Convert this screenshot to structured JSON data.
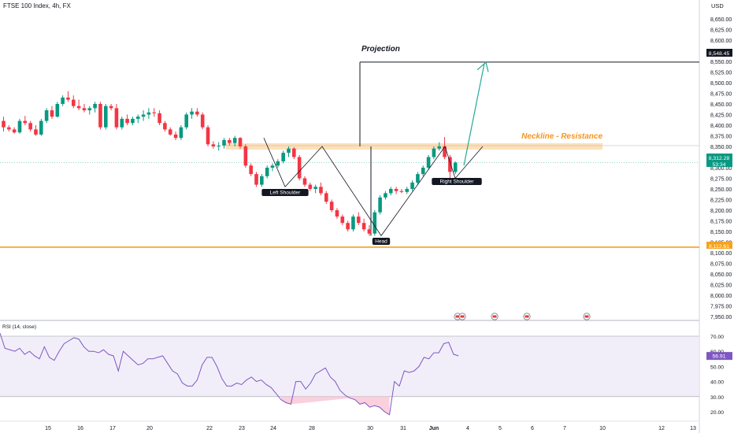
{
  "header": {
    "symbol_title": "FTSE 100 Index, 4h, FX",
    "currency": "USD"
  },
  "chart_data": [
    {
      "type": "candlestick",
      "title": "FTSE 100 Index, 4h, FX",
      "ylim": [
        7940,
        8700
      ],
      "y_ticks": [
        "8,650.00",
        "8,625.00",
        "8,600.00",
        "8,575.00",
        "8,550.00",
        "8,525.00",
        "8,500.00",
        "8,475.00",
        "8,450.00",
        "8,425.00",
        "8,400.00",
        "8,375.00",
        "8,350.00",
        "8,325.00",
        "8,300.00",
        "8,275.00",
        "8,250.00",
        "8,225.00",
        "8,200.00",
        "8,175.00",
        "8,150.00",
        "8,125.00",
        "8,100.00",
        "8,075.00",
        "8,050.00",
        "8,025.00",
        "8,000.00",
        "7,975.00",
        "7,950.00"
      ],
      "x_labels": [
        "15",
        "16",
        "17",
        "20",
        "22",
        "23",
        "24",
        "28",
        "30",
        "31",
        "Jun",
        "4",
        "5",
        "6",
        "7",
        "10",
        "12",
        "13"
      ],
      "candles": [
        [
          8410,
          8420,
          8385,
          8395
        ],
        [
          8395,
          8400,
          8385,
          8390
        ],
        [
          8390,
          8395,
          8380,
          8383
        ],
        [
          8383,
          8415,
          8380,
          8410
        ],
        [
          8410,
          8422,
          8400,
          8405
        ],
        [
          8405,
          8410,
          8385,
          8390
        ],
        [
          8390,
          8400,
          8375,
          8378
        ],
        [
          8378,
          8415,
          8375,
          8410
        ],
        [
          8410,
          8440,
          8405,
          8435
        ],
        [
          8435,
          8445,
          8415,
          8420
        ],
        [
          8420,
          8455,
          8418,
          8450
        ],
        [
          8450,
          8470,
          8445,
          8465
        ],
        [
          8465,
          8480,
          8455,
          8460
        ],
        [
          8460,
          8470,
          8440,
          8445
        ],
        [
          8445,
          8460,
          8435,
          8440
        ],
        [
          8440,
          8450,
          8430,
          8435
        ],
        [
          8435,
          8445,
          8425,
          8440
        ],
        [
          8440,
          8455,
          8430,
          8450
        ],
        [
          8450,
          8455,
          8390,
          8395
        ],
        [
          8395,
          8450,
          8390,
          8445
        ],
        [
          8445,
          8450,
          8435,
          8440
        ],
        [
          8440,
          8450,
          8390,
          8395
        ],
        [
          8395,
          8420,
          8390,
          8415
        ],
        [
          8415,
          8425,
          8400,
          8405
        ],
        [
          8405,
          8420,
          8400,
          8415
        ],
        [
          8415,
          8425,
          8405,
          8420
        ],
        [
          8420,
          8435,
          8410,
          8425
        ],
        [
          8425,
          8440,
          8415,
          8430
        ],
        [
          8430,
          8440,
          8420,
          8428
        ],
        [
          8428,
          8435,
          8400,
          8405
        ],
        [
          8405,
          8410,
          8385,
          8390
        ],
        [
          8390,
          8395,
          8375,
          8378
        ],
        [
          8378,
          8385,
          8365,
          8370
        ],
        [
          8370,
          8400,
          8365,
          8395
        ],
        [
          8395,
          8430,
          8390,
          8425
        ],
        [
          8425,
          8440,
          8415,
          8432
        ],
        [
          8432,
          8440,
          8420,
          8425
        ],
        [
          8425,
          8430,
          8390,
          8395
        ],
        [
          8395,
          8400,
          8350,
          8355
        ],
        [
          8355,
          8362,
          8345,
          8350
        ],
        [
          8350,
          8360,
          8340,
          8352
        ],
        [
          8352,
          8370,
          8345,
          8365
        ],
        [
          8365,
          8370,
          8352,
          8358
        ],
        [
          8358,
          8375,
          8350,
          8370
        ],
        [
          8370,
          8372,
          8345,
          8350
        ],
        [
          8350,
          8355,
          8300,
          8305
        ],
        [
          8305,
          8310,
          8280,
          8285
        ],
        [
          8285,
          8290,
          8255,
          8260
        ],
        [
          8260,
          8285,
          8255,
          8280
        ],
        [
          8280,
          8305,
          8275,
          8300
        ],
        [
          8300,
          8310,
          8292,
          8305
        ],
        [
          8305,
          8320,
          8300,
          8315
        ],
        [
          8315,
          8340,
          8310,
          8335
        ],
        [
          8335,
          8350,
          8325,
          8345
        ],
        [
          8345,
          8348,
          8320,
          8325
        ],
        [
          8325,
          8330,
          8270,
          8275
        ],
        [
          8275,
          8280,
          8255,
          8260
        ],
        [
          8260,
          8265,
          8245,
          8250
        ],
        [
          8250,
          8260,
          8240,
          8255
        ],
        [
          8255,
          8265,
          8235,
          8240
        ],
        [
          8240,
          8245,
          8215,
          8220
        ],
        [
          8220,
          8225,
          8195,
          8200
        ],
        [
          8200,
          8205,
          8180,
          8185
        ],
        [
          8185,
          8190,
          8165,
          8170
        ],
        [
          8170,
          8175,
          8150,
          8155
        ],
        [
          8155,
          8190,
          8150,
          8185
        ],
        [
          8185,
          8195,
          8165,
          8170
        ],
        [
          8170,
          8180,
          8150,
          8155
        ],
        [
          8155,
          8165,
          8140,
          8145
        ],
        [
          8145,
          8200,
          8140,
          8195
        ],
        [
          8195,
          8235,
          8190,
          8230
        ],
        [
          8230,
          8245,
          8225,
          8240
        ],
        [
          8240,
          8255,
          8235,
          8250
        ],
        [
          8250,
          8255,
          8238,
          8245
        ],
        [
          8245,
          8250,
          8240,
          8243
        ],
        [
          8243,
          8255,
          8238,
          8250
        ],
        [
          8250,
          8270,
          8245,
          8265
        ],
        [
          8265,
          8290,
          8260,
          8285
        ],
        [
          8285,
          8305,
          8280,
          8300
        ],
        [
          8300,
          8330,
          8295,
          8325
        ],
        [
          8325,
          8350,
          8320,
          8345
        ],
        [
          8345,
          8360,
          8340,
          8350
        ],
        [
          8350,
          8372,
          8320,
          8325
        ],
        [
          8325,
          8330,
          8275,
          8290
        ],
        [
          8290,
          8315,
          8285,
          8312
        ]
      ],
      "annotations": {
        "left_shoulder": "Left Shoulder",
        "head": "Head",
        "right_shoulder": "Right Shoulder",
        "neckline": "Neckline - Resistance",
        "projection": "Projection",
        "neckline_price": 8350,
        "support_price": 8113,
        "projection_target": 8548.45
      },
      "price_labels": {
        "projection": "8,548.45",
        "last_price": "8,312.28",
        "countdown": "53:34",
        "support": "8,112.61"
      },
      "colors": {
        "up": "#089981",
        "down": "#f23645",
        "neckline": "#f7941d",
        "support": "#f7a21b",
        "arrow": "#22ab94",
        "rsi": "#7e57c2"
      },
      "grid": false
    },
    {
      "type": "line",
      "title": "RSI (14, close)",
      "ylim": [
        15,
        75
      ],
      "y_ticks": [
        "70.00",
        "60.00",
        "50.00",
        "40.00",
        "30.00",
        "20.00"
      ],
      "bands": [
        30,
        70
      ],
      "last_value": "56.91",
      "values": [
        72,
        62,
        61,
        60,
        62,
        58,
        60,
        57,
        55,
        63,
        56,
        54,
        60,
        65,
        67,
        69,
        68,
        63,
        60,
        60,
        59,
        61,
        58,
        57,
        47,
        60,
        57,
        54,
        51,
        52,
        55,
        55,
        56,
        57,
        52,
        47,
        45,
        39,
        37,
        37,
        41,
        51,
        56,
        56,
        50,
        42,
        37,
        37,
        39,
        38,
        41,
        43,
        40,
        41,
        38,
        36,
        32,
        28,
        26,
        25,
        40,
        40,
        35,
        39,
        45,
        47,
        49,
        43,
        40,
        34,
        31,
        29,
        28,
        25,
        26,
        23,
        24,
        23,
        20,
        18,
        40,
        37,
        47,
        46,
        47,
        50,
        56,
        55,
        59,
        59,
        65,
        66,
        58,
        57
      ]
    }
  ]
}
